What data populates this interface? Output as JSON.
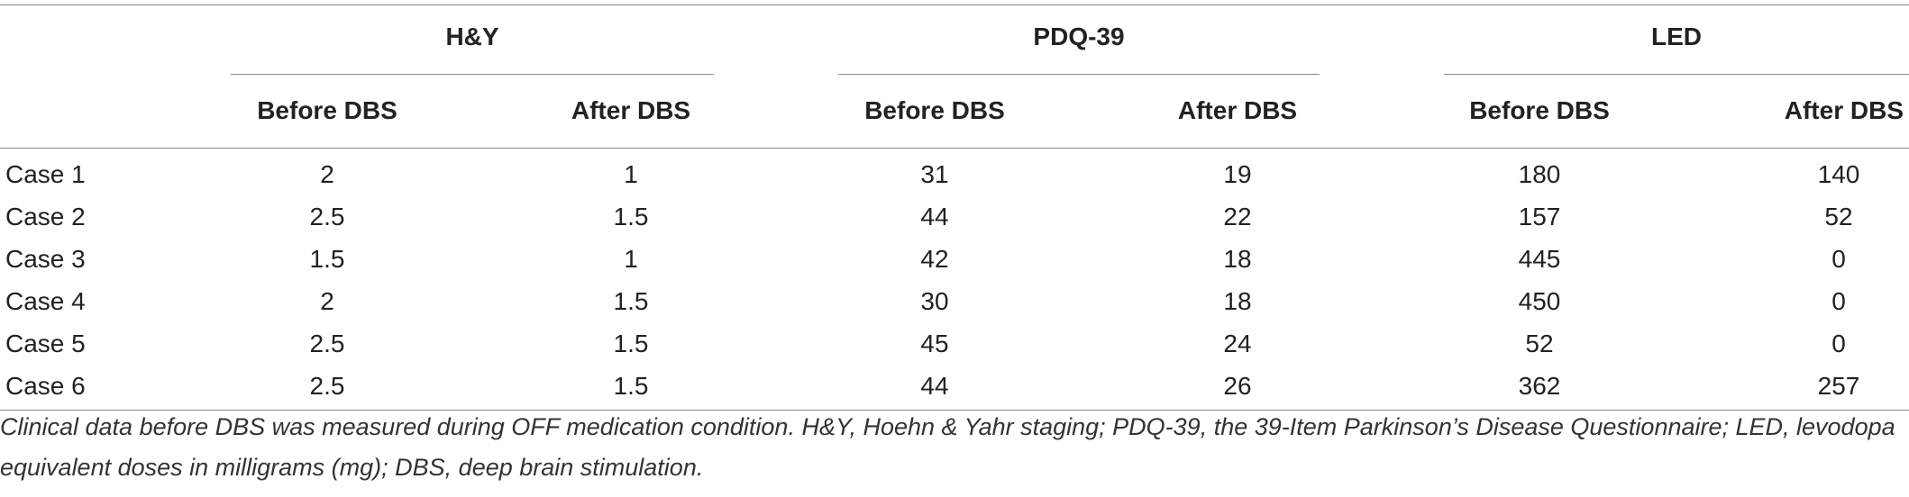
{
  "table": {
    "groups": [
      "H&Y",
      "PDQ-39",
      "LED"
    ],
    "subheaders": [
      "Before DBS",
      "After DBS",
      "Before DBS",
      "After DBS",
      "Before DBS",
      "After DBS"
    ],
    "rows": [
      {
        "label": "Case 1",
        "values": [
          "2",
          "1",
          "31",
          "19",
          "180",
          "140"
        ]
      },
      {
        "label": "Case 2",
        "values": [
          "2.5",
          "1.5",
          "44",
          "22",
          "157",
          "52"
        ]
      },
      {
        "label": "Case 3",
        "values": [
          "1.5",
          "1",
          "42",
          "18",
          "445",
          "0"
        ]
      },
      {
        "label": "Case 4",
        "values": [
          "2",
          "1.5",
          "30",
          "18",
          "450",
          "0"
        ]
      },
      {
        "label": "Case 5",
        "values": [
          "2.5",
          "1.5",
          "45",
          "24",
          "52",
          "0"
        ]
      },
      {
        "label": "Case 6",
        "values": [
          "2.5",
          "1.5",
          "44",
          "26",
          "362",
          "257"
        ]
      }
    ],
    "caption": "Clinical data before DBS was measured during OFF medication condition. H&Y, Hoehn & Yahr staging; PDQ-39, the 39-Item Parkinson’s Disease Questionnaire; LED, levodopa equivalent doses in milligrams (mg); DBS, deep brain stimulation."
  }
}
